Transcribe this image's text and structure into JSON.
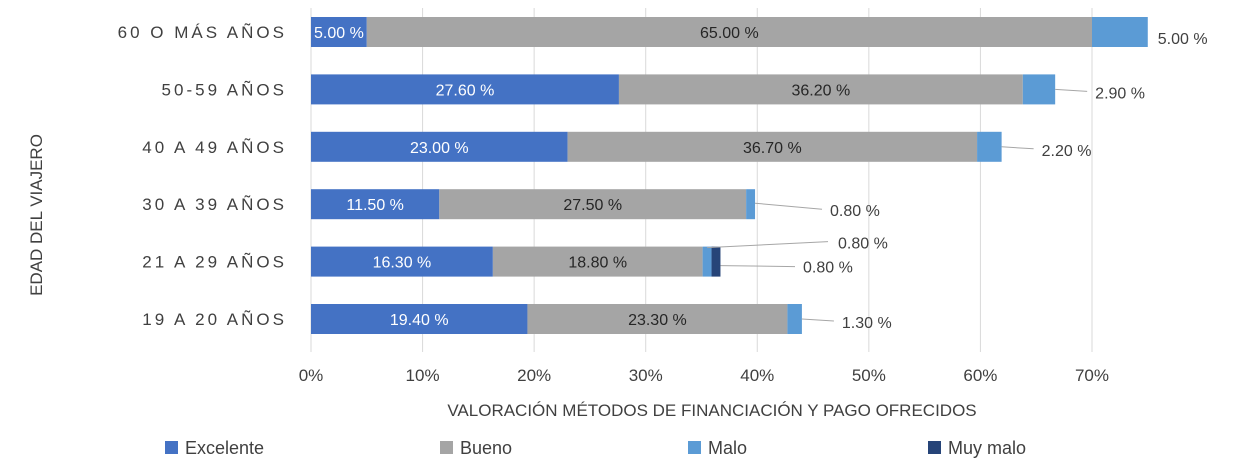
{
  "chart_data": {
    "type": "bar",
    "orientation": "horizontal",
    "stacked": true,
    "title": "",
    "xlabel": "VALORACIÓN MÉTODOS DE FINANCIACIÓN Y PAGO OFRECIDOS",
    "ylabel": "EDAD DEL VIAJERO",
    "xlim": [
      0,
      75
    ],
    "x_ticks": [
      "0%",
      "10%",
      "20%",
      "30%",
      "40%",
      "50%",
      "60%",
      "70%"
    ],
    "grid": true,
    "legend_position": "bottom",
    "categories": [
      "60 O MÁS AÑOS",
      "50-59 AÑOS",
      "40 A 49 AÑOS",
      "30 A 39 AÑOS",
      "21 A 29 AÑOS",
      "19 A 20 AÑOS"
    ],
    "series": [
      {
        "name": "Excelente",
        "color": "#4472C4",
        "values": [
          5.0,
          27.6,
          23.0,
          11.5,
          16.3,
          19.4
        ],
        "labels": [
          "5.00 %",
          "27.60 %",
          "23.00 %",
          "11.50 %",
          "16.30 %",
          "19.40 %"
        ]
      },
      {
        "name": "Bueno",
        "color": "#A5A5A5",
        "values": [
          65.0,
          36.2,
          36.7,
          27.5,
          18.8,
          23.3
        ],
        "labels": [
          "65.00 %",
          "36.20 %",
          "36.70 %",
          "27.50 %",
          "18.80 %",
          "23.30 %"
        ]
      },
      {
        "name": "Malo",
        "color": "#5B9BD5",
        "values": [
          5.0,
          2.9,
          2.2,
          0.8,
          0.8,
          1.3
        ],
        "labels": [
          "5.00 %",
          "2.90 %",
          "2.20 %",
          "0.80 %",
          "0.80 %",
          "1.30 %"
        ]
      },
      {
        "name": "Muy malo",
        "color": "#264478",
        "values": [
          0,
          0,
          0,
          0,
          0.8,
          0
        ],
        "labels": [
          "",
          "",
          "",
          "",
          "0.80 %",
          ""
        ]
      }
    ]
  }
}
